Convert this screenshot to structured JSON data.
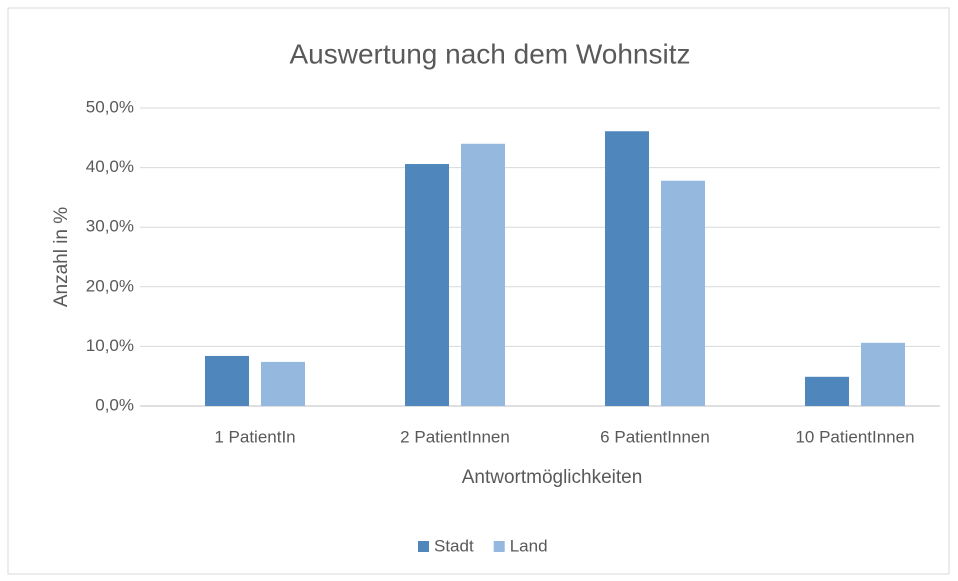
{
  "chart_data": {
    "type": "bar",
    "title": "Auswertung nach dem Wohnsitz",
    "x_label": "Antwortmöglichkeiten",
    "y_label": "Anzahl in %",
    "categories": [
      "1 PatientIn",
      "2 PatientInnen",
      "6 PatientInnen",
      "10 PatientInnen"
    ],
    "series": [
      {
        "name": "Stadt",
        "color": "#4f87bd",
        "values": [
          8.4,
          40.6,
          46.1,
          4.9
        ]
      },
      {
        "name": "Land",
        "color": "#95b8df",
        "values": [
          7.4,
          44.0,
          37.8,
          10.6
        ]
      }
    ],
    "ylim": [
      0,
      50
    ],
    "yticks": [
      {
        "value": 0,
        "label": "0,0%"
      },
      {
        "value": 10,
        "label": "10,0%"
      },
      {
        "value": 20,
        "label": "20,0%"
      },
      {
        "value": 30,
        "label": "30,0%"
      },
      {
        "value": 40,
        "label": "40,0%"
      },
      {
        "value": 50,
        "label": "50,0%"
      }
    ],
    "grid": true,
    "legend": "bottom"
  }
}
